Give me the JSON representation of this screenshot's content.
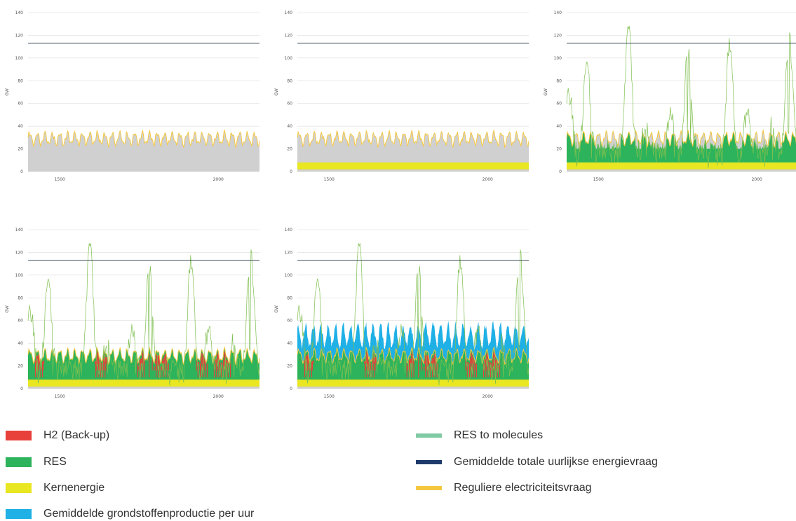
{
  "colors": {
    "h2": "#e8403a",
    "res": "#2db35b",
    "nuclear": "#e9e622",
    "feedstock": "#1fb0e6",
    "res_to_molecules": "#7fc9a3",
    "total_demand": "#1e3a6a",
    "regular_demand": "#f5c842",
    "other": "#d0d0d0",
    "res_peaks": "#7fbf4f"
  },
  "chart_data": [
    {
      "type": "area",
      "panel": 1,
      "xlabel": "",
      "ylabel": "GW",
      "ylim": [
        0,
        140
      ],
      "yticks": [
        0,
        20,
        40,
        60,
        80,
        100,
        120,
        140
      ],
      "xlim": [
        1400,
        2130
      ],
      "xticks": [
        1500,
        2000
      ],
      "total_demand": 113,
      "nuclear": 0,
      "has_res": false,
      "has_h2": false,
      "has_feedstock": false,
      "has_res_peaks": false,
      "grid": true
    },
    {
      "type": "area",
      "panel": 2,
      "xlabel": "",
      "ylabel": "GW",
      "ylim": [
        0,
        140
      ],
      "yticks": [
        0,
        20,
        40,
        60,
        80,
        100,
        120,
        140
      ],
      "xlim": [
        1400,
        2130
      ],
      "xticks": [
        1500,
        2000
      ],
      "total_demand": 113,
      "nuclear": 8,
      "has_res": false,
      "has_h2": false,
      "has_feedstock": false,
      "has_res_peaks": false,
      "grid": true
    },
    {
      "type": "area",
      "panel": 3,
      "xlabel": "",
      "ylabel": "GW",
      "ylim": [
        0,
        140
      ],
      "yticks": [
        0,
        20,
        40,
        60,
        80,
        100,
        120,
        140
      ],
      "xlim": [
        1400,
        2130
      ],
      "xticks": [
        1500,
        2000
      ],
      "total_demand": 113,
      "nuclear": 8,
      "has_res": true,
      "has_h2": false,
      "has_feedstock": false,
      "has_res_peaks": true,
      "grid": true
    },
    {
      "type": "area",
      "panel": 4,
      "xlabel": "",
      "ylabel": "GW",
      "ylim": [
        0,
        140
      ],
      "yticks": [
        0,
        20,
        40,
        60,
        80,
        100,
        120,
        140
      ],
      "xlim": [
        1400,
        2130
      ],
      "xticks": [
        1500,
        2000
      ],
      "total_demand": 113,
      "nuclear": 8,
      "has_res": true,
      "has_h2": true,
      "has_feedstock": false,
      "has_res_peaks": true,
      "grid": true
    },
    {
      "type": "area",
      "panel": 5,
      "xlabel": "",
      "ylabel": "GW",
      "ylim": [
        0,
        140
      ],
      "yticks": [
        0,
        20,
        40,
        60,
        80,
        100,
        120,
        140
      ],
      "xlim": [
        1400,
        2130
      ],
      "xticks": [
        1500,
        2000
      ],
      "total_demand": 113,
      "nuclear": 8,
      "has_res": true,
      "has_h2": true,
      "has_feedstock": true,
      "has_res_peaks": true,
      "grid": true
    }
  ],
  "legend": [
    {
      "key": "h2",
      "label": "H2 (Back-up)",
      "thin": false
    },
    {
      "key": "res",
      "label": "RES",
      "thin": false
    },
    {
      "key": "nuclear",
      "label": "Kernenergie",
      "thin": false
    },
    {
      "key": "feedstock",
      "label": "Gemiddelde grondstoffenproductie per uur",
      "thin": false
    },
    {
      "key": "res_to_molecules",
      "label": "RES to molecules",
      "thin": true
    },
    {
      "key": "total_demand",
      "label": "Gemiddelde totale uurlijkse energievraag",
      "thin": true
    },
    {
      "key": "regular_demand",
      "label": "Reguliere electriciteitsvraag",
      "thin": true
    }
  ]
}
